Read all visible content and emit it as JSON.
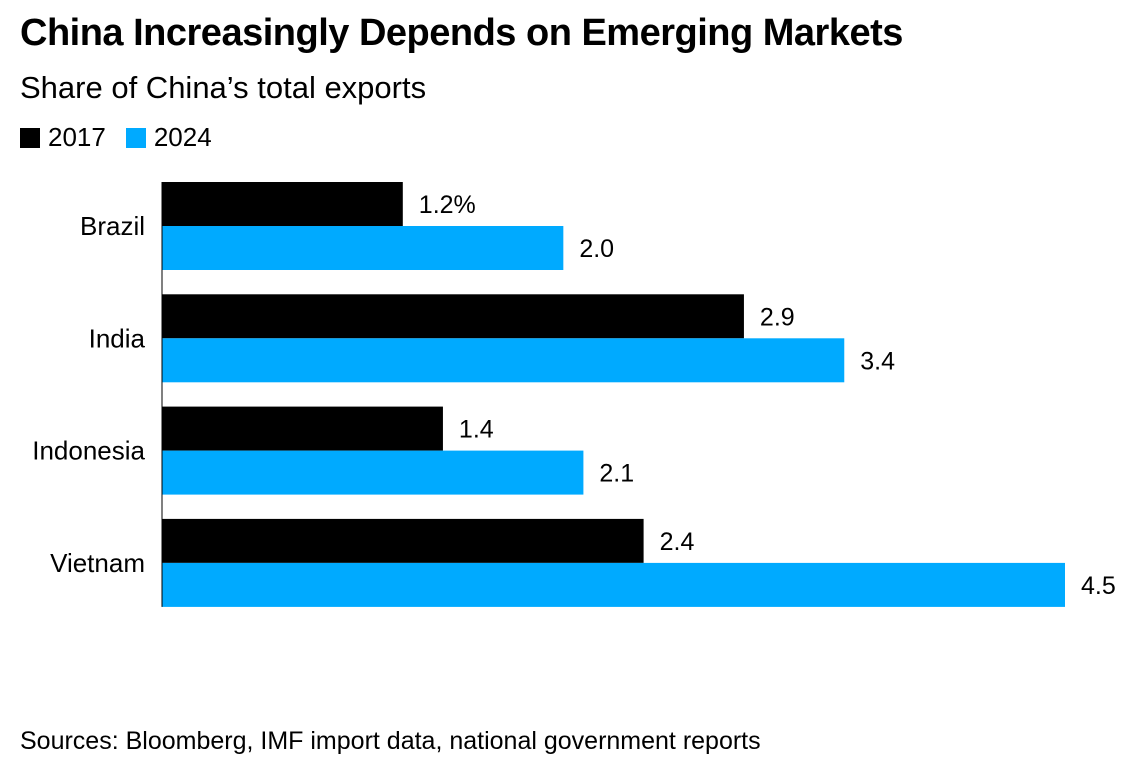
{
  "title": "China Increasingly Depends on Emerging Markets",
  "subtitle": "Share of China’s total exports",
  "source": "Sources: Bloomberg, IMF import data, national government reports",
  "chart_data": {
    "type": "bar",
    "orientation": "horizontal",
    "title": "China Increasingly Depends on Emerging Markets",
    "subtitle": "Share of China’s total exports",
    "categories": [
      "Brazil",
      "India",
      "Indonesia",
      "Vietnam"
    ],
    "series": [
      {
        "name": "2017",
        "color": "#000000",
        "values": [
          1.2,
          2.9,
          1.4,
          2.4
        ],
        "labels": [
          "1.2%",
          "2.9",
          "1.4",
          "2.4"
        ]
      },
      {
        "name": "2024",
        "color": "#00aaff",
        "values": [
          2.0,
          3.4,
          2.1,
          4.5
        ],
        "labels": [
          "2.0",
          "3.4",
          "2.1",
          "4.5"
        ]
      }
    ],
    "xlim": [
      0,
      4.5
    ],
    "legend_position": "top-left",
    "grid": false
  }
}
